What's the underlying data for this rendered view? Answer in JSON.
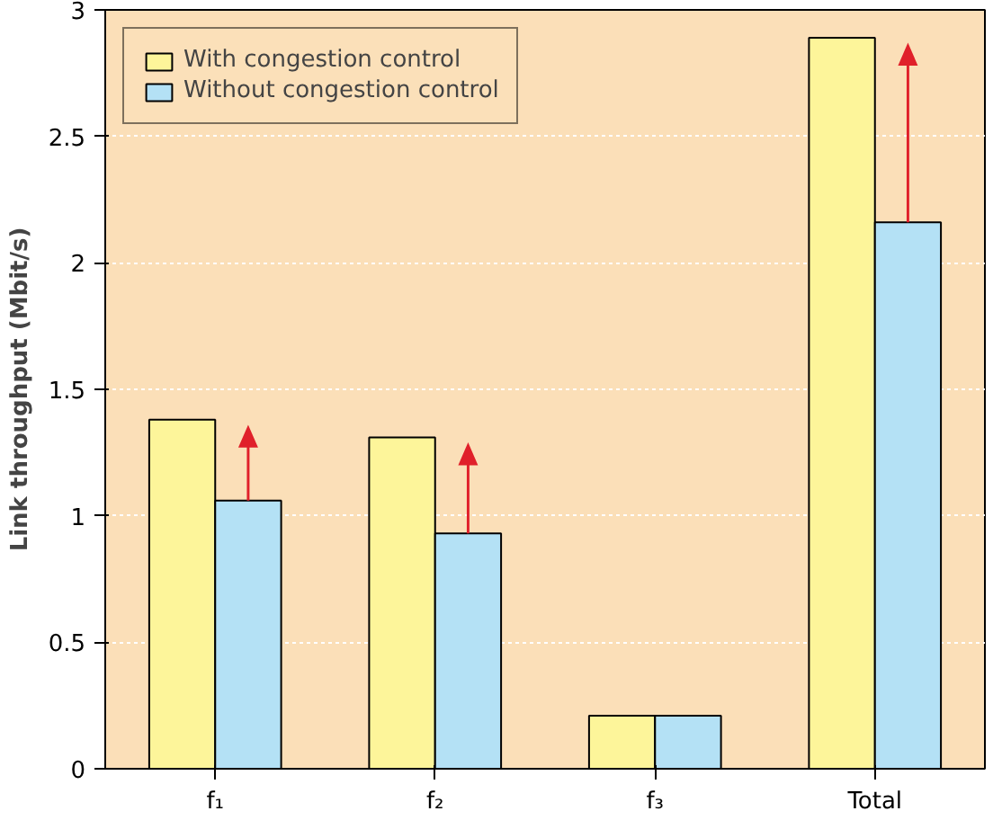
{
  "chart_data": {
    "type": "bar",
    "ylabel": "Link throughput (Mbit/s)",
    "categories": [
      "f₁",
      "f₂",
      "f₃",
      "Total"
    ],
    "series": [
      {
        "name": "With congestion control",
        "color": "#fdf59a",
        "values": [
          1.38,
          1.31,
          0.21,
          2.89
        ]
      },
      {
        "name": "Without congestion control",
        "color": "#b4e1f5",
        "values": [
          1.06,
          0.93,
          0.21,
          2.16
        ]
      }
    ],
    "ylim": [
      0,
      3
    ],
    "yticks": [
      0,
      0.5,
      1,
      1.5,
      2,
      2.5,
      3
    ],
    "grid": "y",
    "legend": "top left"
  }
}
